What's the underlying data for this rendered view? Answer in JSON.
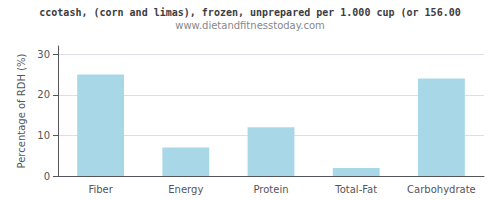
{
  "chart_data": {
    "type": "bar",
    "title": "ccotash, (corn and limas), frozen, unprepared per 1.000 cup (or 156.00",
    "subtitle": "www.dietandfitnesstoday.com",
    "categories": [
      "Fiber",
      "Energy",
      "Protein",
      "Total-Fat",
      "Carbohydrate"
    ],
    "values": [
      25.0,
      7.0,
      12.0,
      2.0,
      24.0
    ],
    "color": "#a8d8e8",
    "ylabel": "Percentage of RDH (%)",
    "ylim": [
      0,
      32
    ],
    "yticks": [
      0,
      10,
      20,
      30
    ],
    "grid": true
  }
}
